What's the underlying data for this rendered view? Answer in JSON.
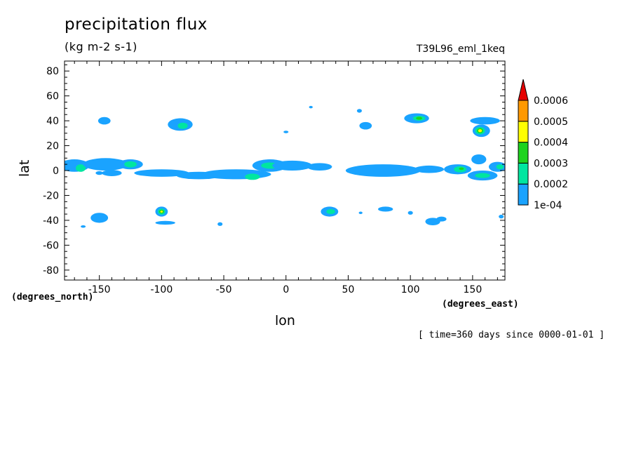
{
  "chart_data": {
    "type": "heatmap",
    "title": "precipitation flux",
    "units": "(kg m-2 s-1)",
    "run_id": "T39L96_eml_1keq",
    "xlabel": "lon",
    "ylabel": "lat",
    "x_units": "(degrees_east)",
    "y_units": "(degrees_north)",
    "time_note": "[ time=360 days since 0000-01-01 ]",
    "xlim": [
      -178,
      176
    ],
    "ylim": [
      -88,
      88
    ],
    "x_ticks": [
      -150,
      -100,
      -50,
      0,
      50,
      100,
      150
    ],
    "x_tick_labels": [
      "-150",
      "-100",
      "-50",
      "0",
      "50",
      "100",
      "150"
    ],
    "y_ticks": [
      -80,
      -60,
      -40,
      -20,
      0,
      20,
      40,
      60,
      80
    ],
    "y_tick_labels": [
      "-80",
      "-60",
      "-40",
      "-20",
      "0",
      "20",
      "40",
      "60",
      "80"
    ],
    "colorbar": {
      "levels": [
        0.0001,
        0.0002,
        0.0003,
        0.0004,
        0.0005,
        0.0006
      ],
      "labels": [
        "1e-04",
        "0.0002",
        "0.0003",
        "0.0004",
        "0.0005",
        "0.0006"
      ],
      "colors": [
        "#1aa3ff",
        "#00e6a0",
        "#1ed31e",
        "#ffff00",
        "#ff9900",
        "#e60000"
      ],
      "extend": "max"
    },
    "features": [
      {
        "lon": -170,
        "lat": 4,
        "dlon": 12,
        "dlat": 5,
        "level": 1
      },
      {
        "lon": -165,
        "lat": 2,
        "dlon": 4,
        "dlat": 3,
        "level": 2
      },
      {
        "lon": -145,
        "lat": 5,
        "dlon": 18,
        "dlat": 5,
        "level": 1
      },
      {
        "lon": -125,
        "lat": 5,
        "dlon": 10,
        "dlat": 4,
        "level": 1
      },
      {
        "lon": -125,
        "lat": 5,
        "dlon": 5,
        "dlat": 2.5,
        "level": 2
      },
      {
        "lon": -140,
        "lat": -2,
        "dlon": 8,
        "dlat": 2.5,
        "level": 1
      },
      {
        "lon": -100,
        "lat": -2,
        "dlon": 22,
        "dlat": 3,
        "level": 1
      },
      {
        "lon": -70,
        "lat": -4,
        "dlon": 18,
        "dlat": 3,
        "level": 1
      },
      {
        "lon": -40,
        "lat": -3,
        "dlon": 28,
        "dlat": 4,
        "level": 1
      },
      {
        "lon": -27,
        "lat": -5,
        "dlon": 6,
        "dlat": 2.5,
        "level": 2
      },
      {
        "lon": -13,
        "lat": 4,
        "dlon": 14,
        "dlat": 5,
        "level": 1
      },
      {
        "lon": -13,
        "lat": 4,
        "dlon": 7,
        "dlat": 2.5,
        "level": 2
      },
      {
        "lon": 5,
        "lat": 4,
        "dlon": 16,
        "dlat": 4,
        "level": 1
      },
      {
        "lon": 27,
        "lat": 3,
        "dlon": 10,
        "dlat": 3,
        "level": 1
      },
      {
        "lon": 78,
        "lat": 0,
        "dlon": 30,
        "dlat": 5,
        "level": 1
      },
      {
        "lon": 115,
        "lat": 1,
        "dlon": 12,
        "dlat": 3,
        "level": 1
      },
      {
        "lon": 138,
        "lat": 1,
        "dlon": 11,
        "dlat": 4,
        "level": 1
      },
      {
        "lon": 140,
        "lat": 1,
        "dlon": 5,
        "dlat": 2.5,
        "level": 2
      },
      {
        "lon": 141,
        "lat": 1.5,
        "dlon": 2,
        "dlat": 1,
        "level": 3
      },
      {
        "lon": 158,
        "lat": -4,
        "dlon": 12,
        "dlat": 4,
        "level": 1
      },
      {
        "lon": 158,
        "lat": -4,
        "dlon": 6,
        "dlat": 2,
        "level": 2
      },
      {
        "lon": 170,
        "lat": 3,
        "dlon": 7,
        "dlat": 4,
        "level": 1
      },
      {
        "lon": 172,
        "lat": 3,
        "dlon": 3,
        "dlat": 2,
        "level": 2
      },
      {
        "lon": 155,
        "lat": 9,
        "dlon": 6,
        "dlat": 4,
        "level": 1
      },
      {
        "lon": -146,
        "lat": 40,
        "dlon": 5,
        "dlat": 3,
        "level": 1
      },
      {
        "lon": -85,
        "lat": 37,
        "dlon": 10,
        "dlat": 5,
        "level": 1
      },
      {
        "lon": -83,
        "lat": 36,
        "dlon": 4,
        "dlat": 2.5,
        "level": 2
      },
      {
        "lon": 105,
        "lat": 42,
        "dlon": 10,
        "dlat": 4,
        "level": 1
      },
      {
        "lon": 107,
        "lat": 42,
        "dlon": 5,
        "dlat": 2,
        "level": 2
      },
      {
        "lon": 107,
        "lat": 42,
        "dlon": 2.5,
        "dlat": 1.2,
        "level": 3
      },
      {
        "lon": 157,
        "lat": 32,
        "dlon": 7,
        "dlat": 5,
        "level": 1
      },
      {
        "lon": 156,
        "lat": 32,
        "dlon": 4,
        "dlat": 3,
        "level": 2
      },
      {
        "lon": 156,
        "lat": 32,
        "dlon": 2.5,
        "dlat": 2,
        "level": 3
      },
      {
        "lon": 156,
        "lat": 32,
        "dlon": 1.5,
        "dlat": 1.2,
        "level": 4
      },
      {
        "lon": 160,
        "lat": 40,
        "dlon": 12,
        "dlat": 3,
        "level": 1
      },
      {
        "lon": 64,
        "lat": 36,
        "dlon": 5,
        "dlat": 3,
        "level": 1
      },
      {
        "lon": -100,
        "lat": -33,
        "dlon": 5,
        "dlat": 4,
        "level": 1
      },
      {
        "lon": -100,
        "lat": -33,
        "dlon": 3,
        "dlat": 2.5,
        "level": 2
      },
      {
        "lon": -100,
        "lat": -33,
        "dlon": 2,
        "dlat": 1.5,
        "level": 3
      },
      {
        "lon": -100,
        "lat": -33,
        "dlon": 1,
        "dlat": 0.8,
        "level": 4
      },
      {
        "lon": -150,
        "lat": -38,
        "dlon": 7,
        "dlat": 4,
        "level": 1
      },
      {
        "lon": 35,
        "lat": -33,
        "dlon": 7,
        "dlat": 4,
        "level": 1
      },
      {
        "lon": 36,
        "lat": -33,
        "dlon": 3.5,
        "dlat": 2,
        "level": 2
      },
      {
        "lon": 80,
        "lat": -31,
        "dlon": 6,
        "dlat": 2,
        "level": 1
      },
      {
        "lon": 118,
        "lat": -41,
        "dlon": 6,
        "dlat": 3,
        "level": 1
      },
      {
        "lon": 125,
        "lat": -39,
        "dlon": 4,
        "dlat": 2,
        "level": 1
      },
      {
        "lon": -97,
        "lat": -42,
        "dlon": 8,
        "dlat": 1.5,
        "level": 1
      },
      {
        "lon": -163,
        "lat": -45,
        "dlon": 2,
        "dlat": 1,
        "level": 1
      },
      {
        "lon": -53,
        "lat": -43,
        "dlon": 2,
        "dlat": 1.5,
        "level": 1
      },
      {
        "lon": 60,
        "lat": -34,
        "dlon": 1.5,
        "dlat": 1,
        "level": 1
      },
      {
        "lon": 100,
        "lat": -34,
        "dlon": 2,
        "dlat": 1.5,
        "level": 1
      },
      {
        "lon": 173,
        "lat": -37,
        "dlon": 2,
        "dlat": 1.5,
        "level": 1
      },
      {
        "lon": 59,
        "lat": 48,
        "dlon": 2,
        "dlat": 1.5,
        "level": 1
      },
      {
        "lon": 20,
        "lat": 51,
        "dlon": 1.5,
        "dlat": 1,
        "level": 1
      },
      {
        "lon": 0,
        "lat": 31,
        "dlon": 2,
        "dlat": 1,
        "level": 1
      },
      {
        "lon": -150,
        "lat": -2,
        "dlon": 3,
        "dlat": 1.5,
        "level": 1
      },
      {
        "lon": -112,
        "lat": -3,
        "dlon": 2,
        "dlat": 1,
        "level": 1
      }
    ]
  }
}
